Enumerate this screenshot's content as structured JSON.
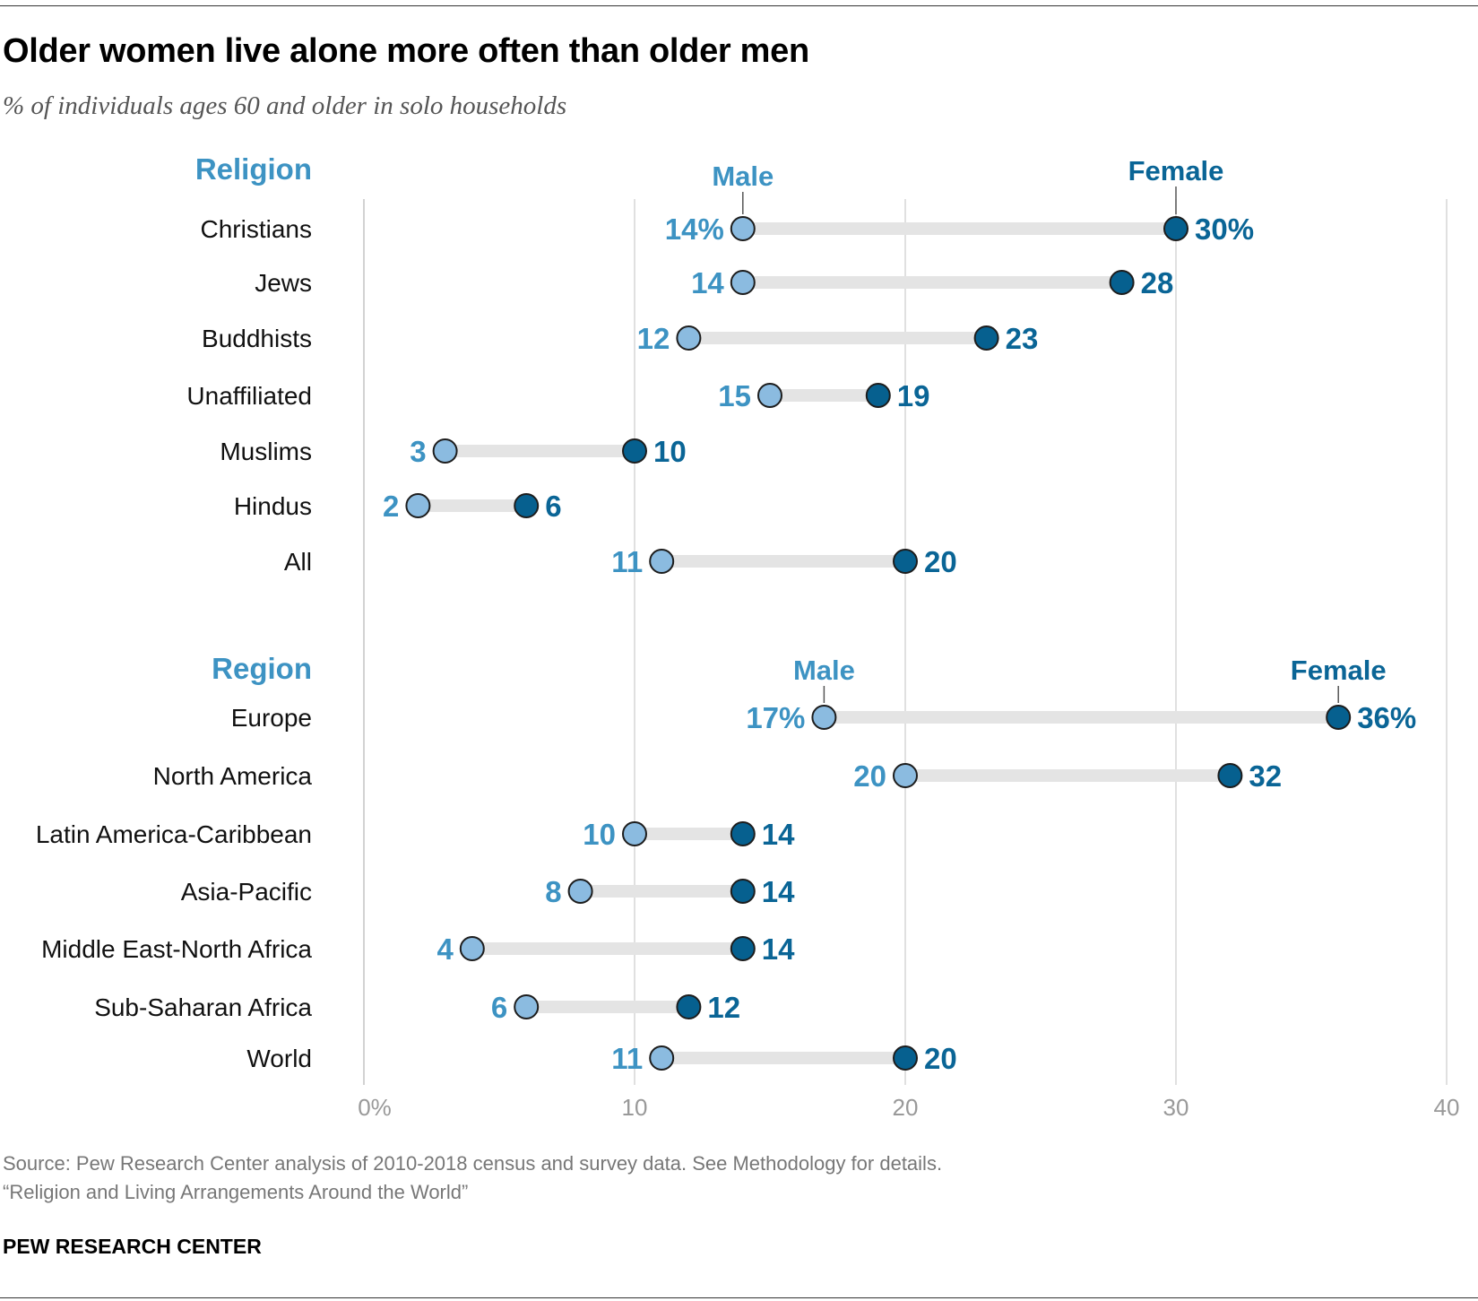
{
  "header": {
    "title": "Older women live alone more often than older men",
    "subtitle": "% of individuals ages 60 and older in solo households"
  },
  "footer": {
    "source": "Source: Pew Research Center analysis of 2010-2018 census and survey data. See Methodology for details.",
    "report": "“Religion and Living Arrangements Around the World”",
    "brand": "PEW RESEARCH CENTER"
  },
  "colors": {
    "male": "#8bbbe0",
    "female": "#06608f",
    "male_text": "#3d93c3",
    "female_text": "#0a6596",
    "connector": "#e4e4e4",
    "grid": "#cfcfcf",
    "axis_text": "#999999"
  },
  "chart_data": {
    "type": "dot-plot",
    "x_axis": {
      "min": 0,
      "max": 40,
      "ticks": [
        0,
        10,
        20,
        30,
        40
      ],
      "tick_labels": [
        "0%",
        "10",
        "20",
        "30",
        "40"
      ]
    },
    "grid": true,
    "series": [
      {
        "name": "Male",
        "key": "male"
      },
      {
        "name": "Female",
        "key": "female"
      }
    ],
    "groups": [
      {
        "heading": "Religion",
        "legend": {
          "male": "Male",
          "female": "Female"
        },
        "rows": [
          {
            "label": "Christians",
            "male": 14,
            "female": 30,
            "male_label": "14%",
            "female_label": "30%"
          },
          {
            "label": "Jews",
            "male": 14,
            "female": 28,
            "male_label": "14",
            "female_label": "28"
          },
          {
            "label": "Buddhists",
            "male": 12,
            "female": 23,
            "male_label": "12",
            "female_label": "23"
          },
          {
            "label": "Unaffiliated",
            "male": 15,
            "female": 19,
            "male_label": "15",
            "female_label": "19"
          },
          {
            "label": "Muslims",
            "male": 3,
            "female": 10,
            "male_label": "3",
            "female_label": "10"
          },
          {
            "label": "Hindus",
            "male": 2,
            "female": 6,
            "male_label": "2",
            "female_label": "6"
          },
          {
            "label": "All",
            "male": 11,
            "female": 20,
            "male_label": "11",
            "female_label": "20"
          }
        ]
      },
      {
        "heading": "Region",
        "legend": {
          "male": "Male",
          "female": "Female"
        },
        "rows": [
          {
            "label": "Europe",
            "male": 17,
            "female": 36,
            "male_label": "17%",
            "female_label": "36%"
          },
          {
            "label": "North America",
            "male": 20,
            "female": 32,
            "male_label": "20",
            "female_label": "32"
          },
          {
            "label": "Latin America-Caribbean",
            "male": 10,
            "female": 14,
            "male_label": "10",
            "female_label": "14"
          },
          {
            "label": "Asia-Pacific",
            "male": 8,
            "female": 14,
            "male_label": "8",
            "female_label": "14"
          },
          {
            "label": "Middle East-North Africa",
            "male": 4,
            "female": 14,
            "male_label": "4",
            "female_label": "14"
          },
          {
            "label": "Sub-Saharan Africa",
            "male": 6,
            "female": 12,
            "male_label": "6",
            "female_label": "12"
          },
          {
            "label": "World",
            "male": 11,
            "female": 20,
            "male_label": "11",
            "female_label": "20"
          }
        ]
      }
    ]
  }
}
